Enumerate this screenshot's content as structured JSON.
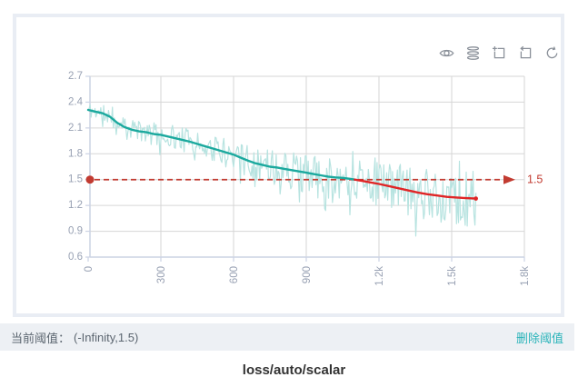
{
  "toolbar": {
    "icons": [
      {
        "name": "eye-icon"
      },
      {
        "name": "stacked-runs-icon"
      },
      {
        "name": "zoom-select-icon"
      },
      {
        "name": "restore-zoom-icon"
      },
      {
        "name": "refresh-icon"
      }
    ]
  },
  "chart_data": {
    "type": "line",
    "title": "loss/auto/scalar",
    "xlabel": "",
    "ylabel": "",
    "xlim": [
      0,
      1800
    ],
    "ylim": [
      0.6,
      2.7
    ],
    "grid": true,
    "legend_position": "none",
    "x_ticks": {
      "labels": [
        "0",
        "300",
        "600",
        "900",
        "1.2k",
        "1.5k",
        "1.8k"
      ],
      "values": [
        0,
        300,
        600,
        900,
        1200,
        1500,
        1800
      ],
      "rotated": true
    },
    "y_ticks": {
      "labels": [
        "2.7",
        "2.4",
        "2.1",
        "1.8",
        "1.5",
        "1.2",
        "0.9",
        "0.6"
      ],
      "values": [
        2.7,
        2.4,
        2.1,
        1.8,
        1.5,
        1.2,
        0.9,
        0.6
      ]
    },
    "threshold": {
      "value": 1.5,
      "label": "1.5",
      "style": "dashed-arrow-right",
      "start_dot": true
    },
    "series": [
      {
        "name": "raw",
        "style": "noisy-line",
        "color": "#b7e3e0",
        "spec": {
          "seed": 11,
          "step": 4,
          "x_end": 1600,
          "amp_start": 0.09,
          "amp_end": 0.33,
          "dip_chance": 0.07,
          "spike_chance": 0.05,
          "clamp": [
            0.65,
            2.62
          ]
        }
      },
      {
        "name": "smoothed",
        "style": "line",
        "color_above_threshold": "#1ba99e",
        "color_below_threshold": "#e02526",
        "split_x": 1100,
        "points": [
          [
            0,
            2.31
          ],
          [
            30,
            2.29
          ],
          [
            60,
            2.27
          ],
          [
            90,
            2.23
          ],
          [
            120,
            2.16
          ],
          [
            150,
            2.11
          ],
          [
            180,
            2.08
          ],
          [
            210,
            2.06
          ],
          [
            240,
            2.05
          ],
          [
            270,
            2.03
          ],
          [
            300,
            2.02
          ],
          [
            330,
            2.0
          ],
          [
            360,
            1.98
          ],
          [
            390,
            1.96
          ],
          [
            420,
            1.94
          ],
          [
            450,
            1.915
          ],
          [
            480,
            1.89
          ],
          [
            510,
            1.865
          ],
          [
            540,
            1.84
          ],
          [
            570,
            1.815
          ],
          [
            600,
            1.79
          ],
          [
            630,
            1.755
          ],
          [
            660,
            1.72
          ],
          [
            690,
            1.69
          ],
          [
            720,
            1.67
          ],
          [
            750,
            1.65
          ],
          [
            780,
            1.64
          ],
          [
            810,
            1.625
          ],
          [
            840,
            1.61
          ],
          [
            870,
            1.595
          ],
          [
            900,
            1.58
          ],
          [
            930,
            1.565
          ],
          [
            960,
            1.55
          ],
          [
            990,
            1.535
          ],
          [
            1020,
            1.525
          ],
          [
            1050,
            1.52
          ],
          [
            1080,
            1.51
          ],
          [
            1100,
            1.5
          ],
          [
            1130,
            1.485
          ],
          [
            1160,
            1.47
          ],
          [
            1200,
            1.45
          ],
          [
            1240,
            1.425
          ],
          [
            1280,
            1.4
          ],
          [
            1320,
            1.375
          ],
          [
            1360,
            1.35
          ],
          [
            1400,
            1.33
          ],
          [
            1440,
            1.315
          ],
          [
            1480,
            1.3
          ],
          [
            1520,
            1.292
          ],
          [
            1560,
            1.285
          ],
          [
            1600,
            1.28
          ]
        ]
      }
    ]
  },
  "footer": {
    "current_threshold_label": "当前阈值：",
    "current_threshold_value": "(-Infinity,1.5)",
    "delete_threshold_label": "删除阈值"
  },
  "colors": {
    "smoothed_teal": "#1ba99e",
    "smoothed_red": "#e02526",
    "raw_line": "#b7e3e0",
    "threshold_red": "#c23b31",
    "grid": "#d6d6d6",
    "axis": "#ccd3e4",
    "tick_label": "#98a1b3",
    "card_border": "#e9edf4",
    "footer_bg": "#edf0f4",
    "footer_text": "#5c6670",
    "link_teal": "#29b3b9",
    "title_text": "#333333",
    "icon_gray": "#8a9099"
  }
}
